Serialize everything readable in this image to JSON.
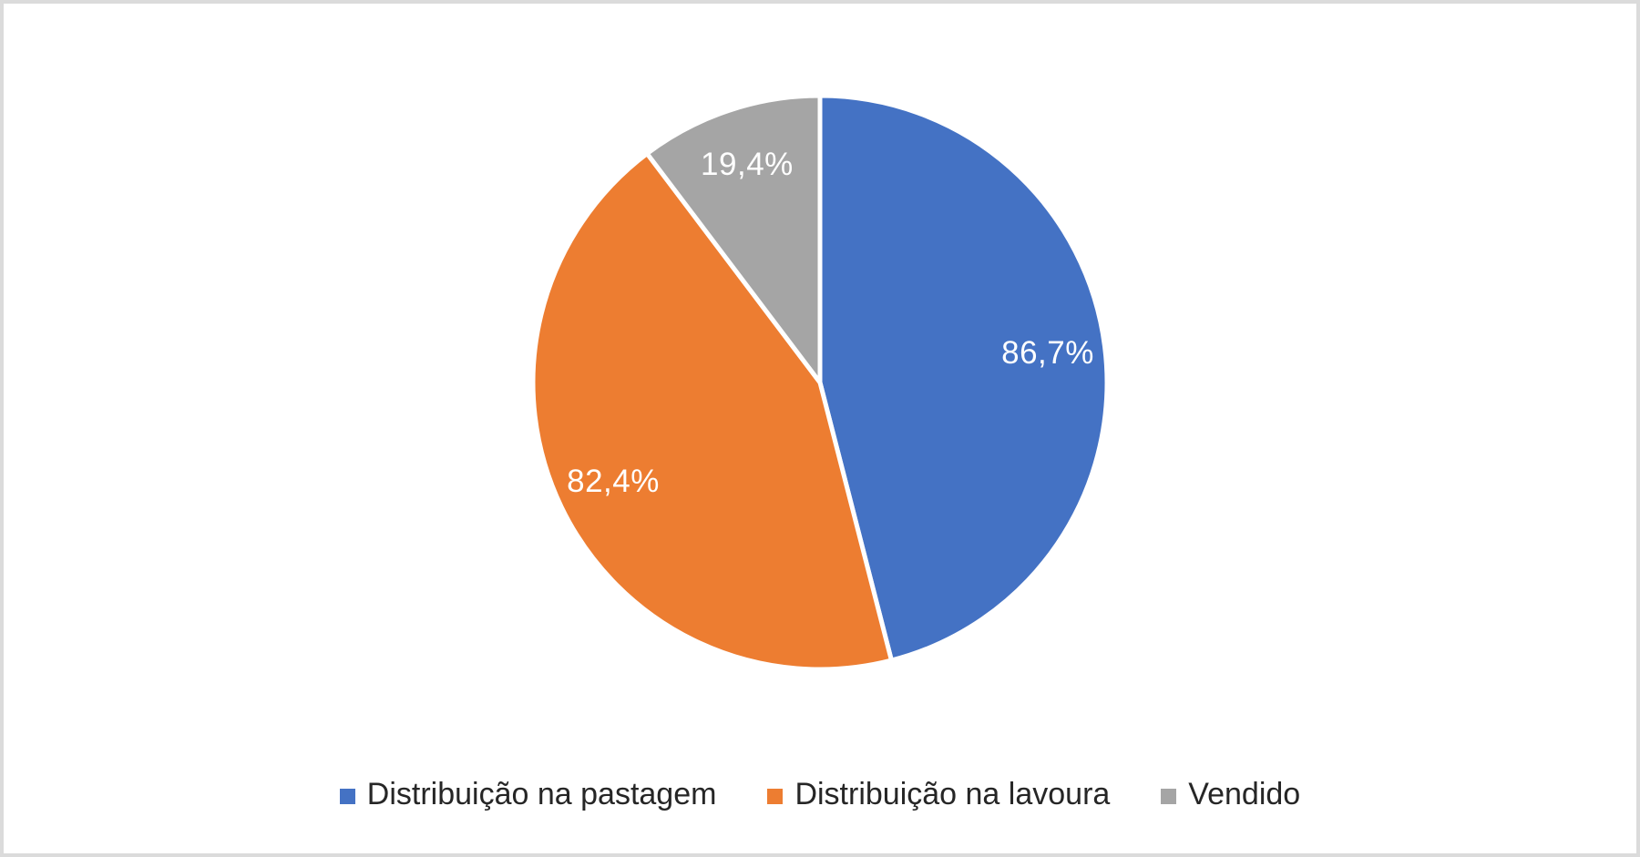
{
  "chart_data": {
    "type": "pie",
    "title": "",
    "categories": [
      "Distribuição na pastagem",
      "Distribuição na lavoura",
      "Vendido"
    ],
    "values": [
      86.7,
      82.4,
      19.4
    ],
    "value_labels": [
      "86,7%",
      "82,4%",
      "19,4%"
    ],
    "colors": [
      "#4472C4",
      "#ED7D31",
      "#A5A5A5"
    ],
    "start_angle_deg": 0,
    "direction": "clockwise",
    "slice_border_color": "#FFFFFF",
    "data_label_color": "#FFFFFF",
    "legend_position": "bottom",
    "legend_text_color": "#262626"
  },
  "frame": {
    "background": "#FFFFFF",
    "border_color": "#DBDBDB"
  }
}
